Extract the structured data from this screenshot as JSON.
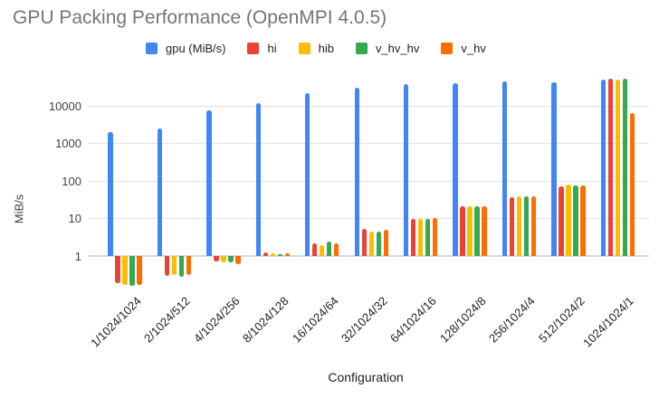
{
  "chart_data": {
    "type": "bar",
    "title": "GPU Packing Performance (OpenMPI 4.0.5)",
    "xlabel": "Configuration",
    "ylabel": "MiB/s",
    "y_scale": "log",
    "y_ticks": [
      1,
      10,
      100,
      1000,
      10000
    ],
    "ylim": [
      0.1,
      100000
    ],
    "grid": true,
    "legend_position": "top",
    "title_color": "#757575",
    "categories": [
      "1/1024/1024",
      "2/1024/512",
      "4/1024/256",
      "8/1024/128",
      "16/1024/64",
      "32/1024/32",
      "64/1024/16",
      "128/1024/8",
      "256/1024/4",
      "512/1024/2",
      "1024/1024/1"
    ],
    "series": [
      {
        "name": "gpu (MiB/s)",
        "color": "#4285F4",
        "values": [
          2100,
          2500,
          8000,
          12000,
          22000,
          32000,
          38500,
          41000,
          46000,
          44000,
          51000
        ]
      },
      {
        "name": "hi",
        "color": "#EA4335",
        "values": [
          0.19,
          0.29,
          0.7,
          1.25,
          2.2,
          5.2,
          10,
          21,
          37,
          72,
          55000
        ]
      },
      {
        "name": "hib",
        "color": "#FBBC04",
        "values": [
          0.17,
          0.31,
          0.66,
          1.2,
          2.0,
          4.5,
          10,
          21,
          40,
          80,
          51000
        ]
      },
      {
        "name": "v_hv_hv",
        "color": "#34A853",
        "values": [
          0.16,
          0.28,
          0.68,
          1.1,
          2.4,
          4.4,
          10,
          21,
          40,
          77,
          55000
        ]
      },
      {
        "name": "v_hv",
        "color": "#FF6D00",
        "values": [
          0.17,
          0.31,
          0.62,
          1.2,
          2.2,
          5.0,
          10.2,
          21,
          40,
          77,
          6800
        ]
      }
    ]
  }
}
